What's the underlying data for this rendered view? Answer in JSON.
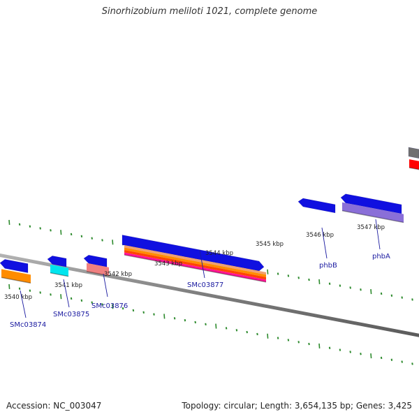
{
  "header": {
    "title": "Sinorhizobium meliloti 1021, complete genome"
  },
  "footer": {
    "accession": "Accession: NC_003047",
    "summary": "Topology: circular; Length: 3,654,135 bp; Genes: 3,425"
  },
  "colors": {
    "backbone": "#888888",
    "tick": "#2e8b2e",
    "gene": "#1010e0",
    "label": "#1a1aa0",
    "scale_text": "#222222"
  },
  "scale": {
    "unit": "kbp",
    "labels": [
      "3540 kbp",
      "3541 kbp",
      "3542 kbp",
      "3543 kbp",
      "3544 kbp",
      "3545 kbp",
      "3546 kbp",
      "3547 kbp"
    ]
  },
  "genes": [
    {
      "name": "SMc03874",
      "strand": "reverse",
      "feature_colors": [
        "#ff8c00"
      ]
    },
    {
      "name": "SMc03875",
      "strand": "reverse",
      "feature_colors": [
        "#00e5ee"
      ]
    },
    {
      "name": "SMc03876",
      "strand": "reverse",
      "feature_colors": [
        "#f08080"
      ]
    },
    {
      "name": "SMc03877",
      "strand": "forward",
      "feature_colors": [
        "#f0a070",
        "#ff8c00",
        "#ff4500",
        "#ff1493"
      ]
    },
    {
      "name": "phbB",
      "strand": "reverse",
      "feature_colors": []
    },
    {
      "name": "phbA",
      "strand": "reverse",
      "feature_colors": [
        "#8a6fd8"
      ]
    },
    {
      "name": "",
      "strand": "forward",
      "feature_colors": [
        "#ff0000"
      ],
      "track_color": "#707070"
    }
  ]
}
